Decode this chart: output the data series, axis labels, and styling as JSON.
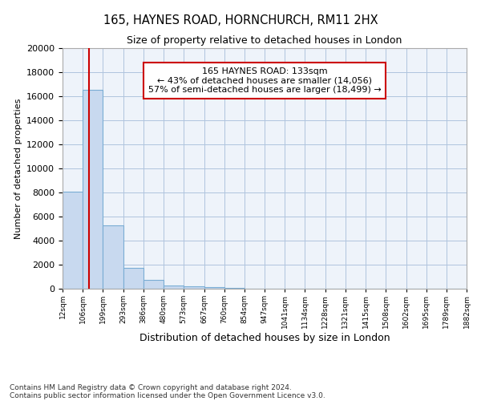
{
  "title1": "165, HAYNES ROAD, HORNCHURCH, RM11 2HX",
  "title2": "Size of property relative to detached houses in London",
  "xlabel": "Distribution of detached houses by size in London",
  "ylabel": "Number of detached properties",
  "bin_edges": [
    12,
    106,
    199,
    293,
    386,
    480,
    573,
    667,
    760,
    854,
    947,
    1041,
    1134,
    1228,
    1321,
    1415,
    1508,
    1602,
    1695,
    1789,
    1882
  ],
  "bar_heights": [
    8100,
    16500,
    5300,
    1750,
    750,
    300,
    200,
    150,
    100,
    0,
    0,
    0,
    0,
    0,
    0,
    0,
    0,
    0,
    0,
    0
  ],
  "bar_color": "#c8d9ef",
  "bar_edgecolor": "#7aadd4",
  "grid_color": "#b0c4de",
  "plot_bg_color": "#eef3fa",
  "red_line_x": 133,
  "annotation_text": "165 HAYNES ROAD: 133sqm\n← 43% of detached houses are smaller (14,056)\n57% of semi-detached houses are larger (18,499) →",
  "annotation_box_color": "#ffffff",
  "annotation_border_color": "#cc0000",
  "red_line_color": "#cc0000",
  "ylim": [
    0,
    20000
  ],
  "yticks": [
    0,
    2000,
    4000,
    6000,
    8000,
    10000,
    12000,
    14000,
    16000,
    18000,
    20000
  ],
  "xtick_labels": [
    "12sqm",
    "106sqm",
    "199sqm",
    "293sqm",
    "386sqm",
    "480sqm",
    "573sqm",
    "667sqm",
    "760sqm",
    "854sqm",
    "947sqm",
    "1041sqm",
    "1134sqm",
    "1228sqm",
    "1321sqm",
    "1415sqm",
    "1508sqm",
    "1602sqm",
    "1695sqm",
    "1789sqm",
    "1882sqm"
  ],
  "footnote1": "Contains HM Land Registry data © Crown copyright and database right 2024.",
  "footnote2": "Contains public sector information licensed under the Open Government Licence v3.0."
}
